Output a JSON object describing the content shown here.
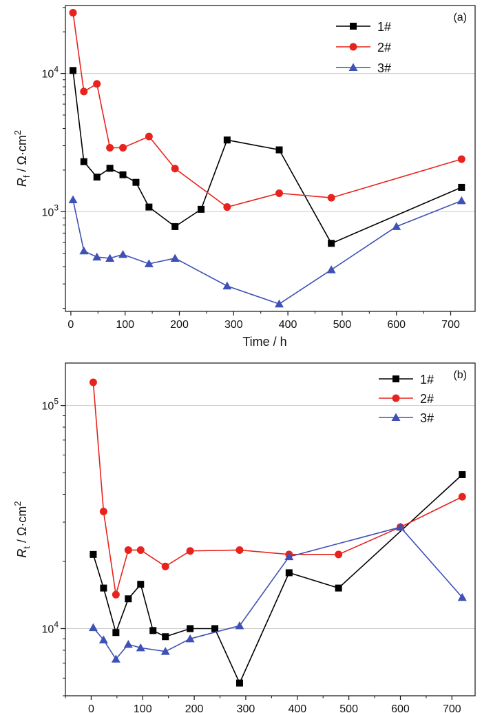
{
  "chart_data": [
    {
      "type": "line",
      "panel_label": "(a)",
      "xlabel": "Time / h",
      "ylabel": {
        "symbol": "R",
        "subscript": "f",
        "unit": " / Ω·cm",
        "superscript": "2"
      },
      "yscale": "log",
      "xlim": [
        -10,
        745
      ],
      "ylim": [
        190,
        31000
      ],
      "xticks": [
        0,
        100,
        200,
        300,
        400,
        500,
        600,
        700
      ],
      "yticks": [
        {
          "value": 1000,
          "base": "10",
          "exp": "3"
        },
        {
          "value": 10000,
          "base": "10",
          "exp": "4"
        }
      ],
      "grid": "horizontal at major y ticks",
      "legend_position": "top-center",
      "series": [
        {
          "name": "1#",
          "color": "#000000",
          "marker": "square",
          "x": [
            4,
            24,
            48,
            72,
            96,
            120,
            144,
            192,
            240,
            288,
            384,
            480,
            720
          ],
          "y": [
            10500,
            2300,
            1780,
            2060,
            1850,
            1630,
            1080,
            780,
            1040,
            3300,
            2800,
            590,
            1500
          ]
        },
        {
          "name": "2#",
          "color": "#e8221c",
          "marker": "circle",
          "x": [
            4,
            24,
            48,
            72,
            96,
            144,
            192,
            288,
            384,
            480,
            720
          ],
          "y": [
            27500,
            7400,
            8400,
            2900,
            2900,
            3500,
            2050,
            1080,
            1360,
            1260,
            2400
          ]
        },
        {
          "name": "3#",
          "color": "#3f51b5",
          "marker": "triangle",
          "x": [
            4,
            24,
            48,
            72,
            96,
            144,
            192,
            288,
            384,
            480,
            600,
            720
          ],
          "y": [
            1220,
            520,
            470,
            460,
            490,
            420,
            460,
            290,
            215,
            380,
            780,
            1200
          ]
        }
      ]
    },
    {
      "type": "line",
      "panel_label": "(b)",
      "xlabel": "Time / h",
      "ylabel": {
        "symbol": "R",
        "subscript": "t",
        "unit": " / Ω·cm",
        "superscript": "2"
      },
      "yscale": "log",
      "xlim": [
        -50,
        745
      ],
      "ylim": [
        5000,
        155000
      ],
      "xticks": [
        0,
        100,
        200,
        300,
        400,
        500,
        600,
        700
      ],
      "yticks": [
        {
          "value": 10000,
          "base": "10",
          "exp": "4"
        },
        {
          "value": 100000,
          "base": "10",
          "exp": "5"
        }
      ],
      "grid": "horizontal at major y ticks",
      "legend_position": "top-right",
      "series": [
        {
          "name": "1#",
          "color": "#000000",
          "marker": "square",
          "x": [
            4,
            24,
            48,
            72,
            96,
            120,
            144,
            192,
            240,
            288,
            384,
            480,
            720
          ],
          "y": [
            21500,
            15200,
            9600,
            13600,
            15800,
            9800,
            9200,
            10000,
            10000,
            5700,
            17800,
            15200,
            49000
          ]
        },
        {
          "name": "2#",
          "color": "#e8221c",
          "marker": "circle",
          "x": [
            4,
            24,
            48,
            72,
            96,
            144,
            192,
            288,
            384,
            480,
            600,
            720
          ],
          "y": [
            127000,
            33500,
            14200,
            22500,
            22500,
            19000,
            22300,
            22500,
            21500,
            21500,
            28500,
            39000
          ]
        },
        {
          "name": "3#",
          "color": "#3f51b5",
          "marker": "triangle",
          "x": [
            4,
            24,
            48,
            72,
            96,
            144,
            192,
            288,
            384,
            600,
            720
          ],
          "y": [
            10100,
            8900,
            7300,
            8500,
            8200,
            7900,
            9000,
            10300,
            21000,
            28500,
            13800
          ]
        }
      ]
    }
  ]
}
